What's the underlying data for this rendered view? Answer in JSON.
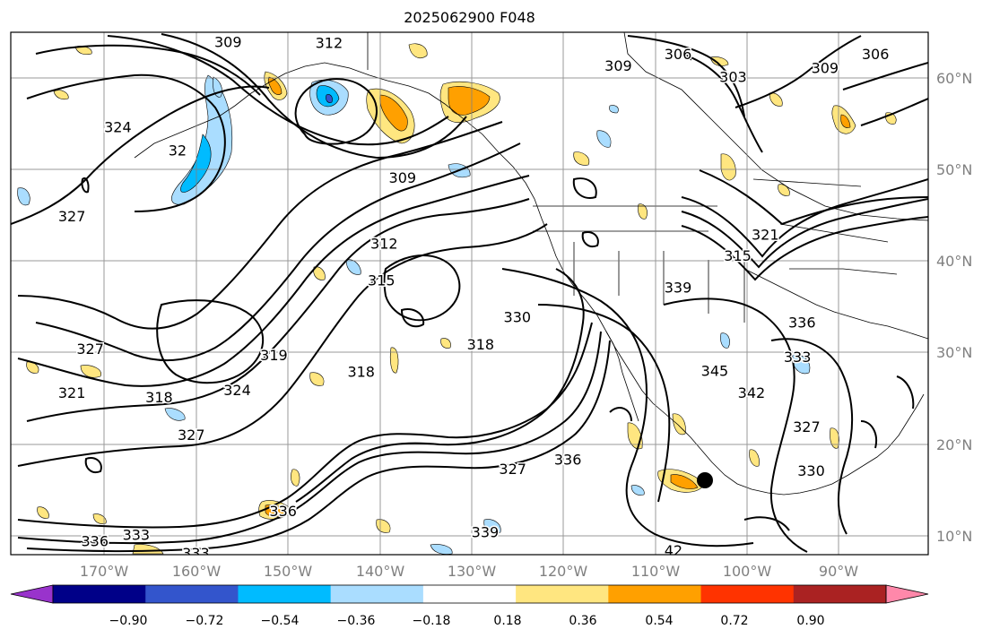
{
  "title": "2025062900 F048",
  "lat_labels": [
    "60°N",
    "50°N",
    "40°N",
    "30°N",
    "20°N",
    "10°N"
  ],
  "lon_labels": [
    "170°W",
    "160°W",
    "150°W",
    "140°W",
    "130°W",
    "120°W",
    "110°W",
    "100°W",
    "90°W"
  ],
  "colorbar": {
    "ticks": [
      "−0.90",
      "−0.72",
      "−0.54",
      "−0.36",
      "−0.18",
      "0.18",
      "0.36",
      "0.54",
      "0.72",
      "0.90"
    ],
    "colors": [
      "#9933cc",
      "#000088",
      "#3355cc",
      "#00bbff",
      "#aaddff",
      "#ffffff",
      "#ffe680",
      "#ffa000",
      "#ff3300",
      "#aa2222",
      "#ff88aa"
    ]
  },
  "contour_labels": [
    {
      "text": "309",
      "lon": -156.5,
      "lat": 63.8
    },
    {
      "text": "312",
      "lon": -145.5,
      "lat": 63.7
    },
    {
      "text": "306",
      "lon": -107.5,
      "lat": 62.5
    },
    {
      "text": "309",
      "lon": -114.0,
      "lat": 61.2
    },
    {
      "text": "303",
      "lon": -101.5,
      "lat": 60.0
    },
    {
      "text": "309",
      "lon": -91.5,
      "lat": 61.0
    },
    {
      "text": "306",
      "lon": -86.0,
      "lat": 62.5
    },
    {
      "text": "324",
      "lon": -168.5,
      "lat": 54.5
    },
    {
      "text": "32",
      "lon": -162.0,
      "lat": 52.0
    },
    {
      "text": "327",
      "lon": -173.5,
      "lat": 44.8
    },
    {
      "text": "309",
      "lon": -137.5,
      "lat": 49.0
    },
    {
      "text": "312",
      "lon": -139.5,
      "lat": 41.8
    },
    {
      "text": "315",
      "lon": -139.8,
      "lat": 37.8
    },
    {
      "text": "321",
      "lon": -98.0,
      "lat": 42.8
    },
    {
      "text": "315",
      "lon": -101.0,
      "lat": 40.5
    },
    {
      "text": "339",
      "lon": -107.5,
      "lat": 37.0
    },
    {
      "text": "336",
      "lon": -94.0,
      "lat": 33.2
    },
    {
      "text": "333",
      "lon": -94.5,
      "lat": 29.4
    },
    {
      "text": "330",
      "lon": -125.0,
      "lat": 33.8
    },
    {
      "text": "318",
      "lon": -129.0,
      "lat": 30.8
    },
    {
      "text": "327",
      "lon": -171.5,
      "lat": 30.3
    },
    {
      "text": "319",
      "lon": -151.5,
      "lat": 29.6
    },
    {
      "text": "318",
      "lon": -142.0,
      "lat": 27.8
    },
    {
      "text": "321",
      "lon": -173.5,
      "lat": 25.5
    },
    {
      "text": "318",
      "lon": -164.0,
      "lat": 25.0
    },
    {
      "text": "324",
      "lon": -155.5,
      "lat": 25.8
    },
    {
      "text": "327",
      "lon": -160.5,
      "lat": 20.9
    },
    {
      "text": "345",
      "lon": -103.5,
      "lat": 27.9
    },
    {
      "text": "342",
      "lon": -99.5,
      "lat": 25.5
    },
    {
      "text": "327",
      "lon": -93.5,
      "lat": 21.8
    },
    {
      "text": "330",
      "lon": -93.0,
      "lat": 17.0
    },
    {
      "text": "327",
      "lon": -125.5,
      "lat": 17.2
    },
    {
      "text": "336",
      "lon": -119.5,
      "lat": 18.2
    },
    {
      "text": "336",
      "lon": -150.5,
      "lat": 12.6
    },
    {
      "text": "339",
      "lon": -128.5,
      "lat": 10.3
    },
    {
      "text": "336",
      "lon": -171.0,
      "lat": 9.3
    },
    {
      "text": "333",
      "lon": -166.5,
      "lat": 10.0
    },
    {
      "text": "333",
      "lon": -160.0,
      "lat": 8.0
    },
    {
      "text": "42",
      "lon": -108.0,
      "lat": 8.3
    }
  ]
}
